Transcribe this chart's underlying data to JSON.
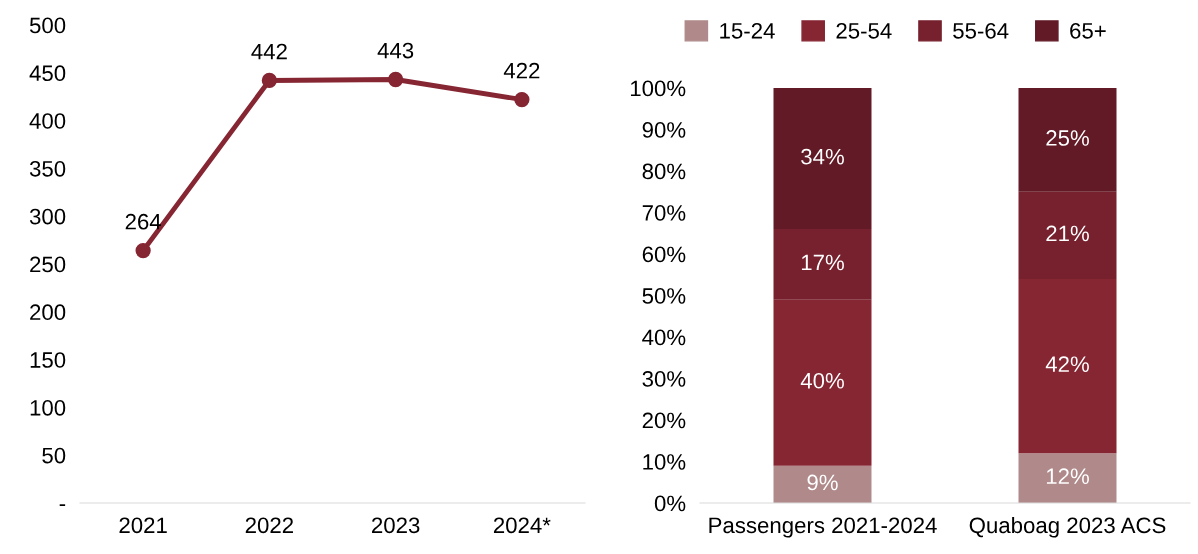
{
  "chart_data": [
    {
      "type": "line",
      "categories": [
        "2021",
        "2022",
        "2023",
        "2024*"
      ],
      "series": [
        {
          "color": "#862633",
          "values": [
            264,
            442,
            443,
            422
          ]
        }
      ],
      "ylim": [
        0,
        500
      ],
      "yticks": [
        {
          "value": 0,
          "label": "-"
        },
        50,
        100,
        150,
        200,
        250,
        300,
        350,
        400,
        450,
        500
      ],
      "marker": "circle",
      "line_style": "solid",
      "data_labels": true,
      "grid": false,
      "legend": false
    },
    {
      "type": "bar",
      "stacked": true,
      "categories": [
        "Passengers 2021-2024",
        "Quaboag 2023 ACS"
      ],
      "series": [
        {
          "name": "15-24",
          "color": "#b08a8b",
          "values": [
            9,
            12
          ],
          "value_labels": [
            "9%",
            "12%"
          ]
        },
        {
          "name": "25-54",
          "color": "#862633",
          "values": [
            40,
            42
          ],
          "value_labels": [
            "40%",
            "42%"
          ]
        },
        {
          "name": "55-64",
          "color": "#76212d",
          "values": [
            17,
            21
          ],
          "value_labels": [
            "17%",
            "21%"
          ]
        },
        {
          "name": "65+",
          "color": "#621a26",
          "values": [
            34,
            25
          ],
          "value_labels": [
            "34%",
            "25%"
          ]
        }
      ],
      "ylim": [
        0,
        100
      ],
      "yticks": [
        {
          "value": 0,
          "label": "0%"
        },
        {
          "value": 10,
          "label": "10%"
        },
        {
          "value": 20,
          "label": "20%"
        },
        {
          "value": 30,
          "label": "30%"
        },
        {
          "value": 40,
          "label": "40%"
        },
        {
          "value": 50,
          "label": "50%"
        },
        {
          "value": 60,
          "label": "60%"
        },
        {
          "value": 70,
          "label": "70%"
        },
        {
          "value": 80,
          "label": "80%"
        },
        {
          "value": 90,
          "label": "90%"
        },
        {
          "value": 100,
          "label": "100%"
        }
      ],
      "grid": false,
      "legend": "top"
    }
  ]
}
